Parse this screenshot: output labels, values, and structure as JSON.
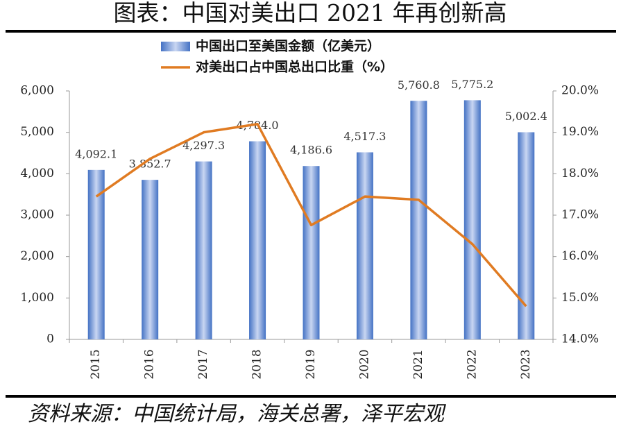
{
  "chart_data": {
    "type": "bar-line",
    "title": "图表：中国对美出口 2021 年再创新高",
    "source": "资料来源：中国统计局，海关总署，泽平宏观",
    "categories": [
      "2015",
      "2016",
      "2017",
      "2018",
      "2019",
      "2020",
      "2021",
      "2022",
      "2023"
    ],
    "series": [
      {
        "name": "中国出口至美国金额（亿美元）",
        "type": "bar",
        "color": "#4472c4",
        "values": [
          4092.1,
          3852.7,
          4297.3,
          4784.0,
          4186.6,
          4517.3,
          5760.8,
          5775.2,
          5002.4
        ],
        "value_labels": [
          "4,092.1",
          "3,852.7",
          "4,297.3",
          "4,784.0",
          "4,186.6",
          "4,517.3",
          "5,760.8",
          "5,775.2",
          "5,002.4"
        ]
      },
      {
        "name": "对美出口占中国总出口比重（%）",
        "type": "line",
        "axis": "y2",
        "color": "#e07b22",
        "values": [
          17.45,
          18.36,
          19.0,
          19.2,
          16.76,
          17.45,
          17.37,
          16.3,
          14.8
        ]
      }
    ],
    "ylim": [
      0,
      6000
    ],
    "yticks": [
      0,
      {
        "value": 1000,
        "label": "1,000"
      },
      {
        "value": 2000,
        "label": "2,000"
      },
      {
        "value": 3000,
        "label": "3,000"
      },
      {
        "value": 4000,
        "label": "4,000"
      },
      {
        "value": 5000,
        "label": "5,000"
      },
      {
        "value": 6000,
        "label": "6,000"
      }
    ],
    "y2lim": [
      14,
      20
    ],
    "y2ticks": [
      {
        "value": 14,
        "label": "14.0%"
      },
      {
        "value": 15,
        "label": "15.0%"
      },
      {
        "value": 16,
        "label": "16.0%"
      },
      {
        "value": 17,
        "label": "17.0%"
      },
      {
        "value": 18,
        "label": "18.0%"
      },
      {
        "value": 19,
        "label": "19.0%"
      },
      {
        "value": 20,
        "label": "20.0%"
      }
    ],
    "grid": false
  }
}
